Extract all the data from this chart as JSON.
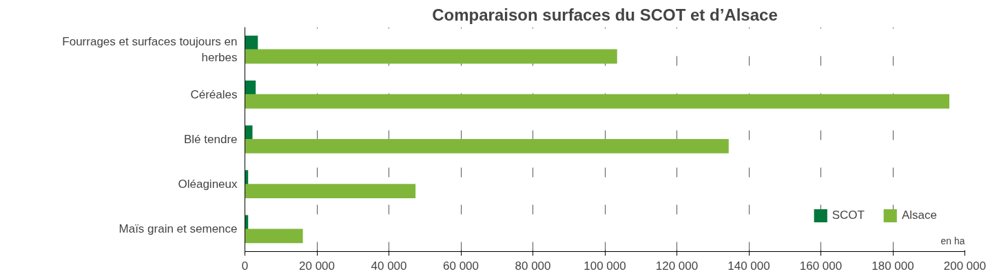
{
  "chart_data": {
    "type": "bar",
    "orientation": "horizontal",
    "title": "Comparaison surfaces du SCOT et d’Alsace",
    "categories": [
      "Fourrages et surfaces toujours en herbes",
      "Céréales",
      "Blé tendre",
      "Oléagineux",
      "Maïs grain et semence"
    ],
    "series": [
      {
        "name": "SCOT",
        "color": "#00773c",
        "values": [
          3600,
          3000,
          2100,
          900,
          900
        ]
      },
      {
        "name": "Alsace",
        "color": "#80b73b",
        "values": [
          103400,
          195700,
          134400,
          47400,
          16100
        ]
      }
    ],
    "xlim": [
      0,
      200000
    ],
    "xticks": [
      {
        "value": 0,
        "label": "0"
      },
      {
        "value": 20000,
        "label": "20 000"
      },
      {
        "value": 40000,
        "label": "40 000"
      },
      {
        "value": 60000,
        "label": "60 000"
      },
      {
        "value": 80000,
        "label": "80 000"
      },
      {
        "value": 100000,
        "label": "100 000"
      },
      {
        "value": 120000,
        "label": "120 000"
      },
      {
        "value": 140000,
        "label": "140 000"
      },
      {
        "value": 160000,
        "label": "160 000"
      },
      {
        "value": 180000,
        "label": "180 000"
      },
      {
        "value": 200000,
        "label": "200 000"
      }
    ],
    "grid": "x",
    "legend": "bottom right",
    "annotations": [
      "en ha"
    ]
  }
}
